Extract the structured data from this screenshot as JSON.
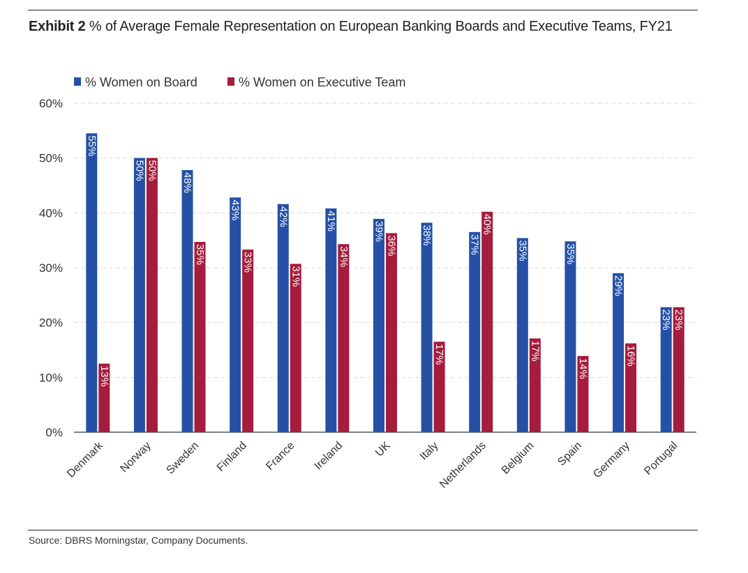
{
  "header": {
    "title_prefix": "Exhibit 2",
    "title_rest": "% of Average Female Representation on European Banking Boards and Executive Teams, FY21"
  },
  "footer": {
    "source": "Source: DBRS Morningstar, Company Documents."
  },
  "chart_data": {
    "type": "bar",
    "legend_position": "top-left",
    "grid": true,
    "ylim": [
      0,
      60
    ],
    "yticks": [
      "0%",
      "10%",
      "20%",
      "30%",
      "40%",
      "50%",
      "60%"
    ],
    "categories": [
      "Denmark",
      "Norway",
      "Sweden",
      "Finland",
      "France",
      "Ireland",
      "UK",
      "Italy",
      "Netherlands",
      "Belgium",
      "Spain",
      "Germany",
      "Portugal"
    ],
    "series": [
      {
        "name": "% Women on Board",
        "color": "#2451a6",
        "values": [
          54.5,
          50,
          47.8,
          42.8,
          41.6,
          40.8,
          38.9,
          38.2,
          36.5,
          35.4,
          34.8,
          29,
          22.8
        ],
        "labels": [
          "55%",
          "50%",
          "48%",
          "43%",
          "42%",
          "41%",
          "39%",
          "38%",
          "37%",
          "35%",
          "35%",
          "29%",
          "23%"
        ]
      },
      {
        "name": "% Women on Executive Team",
        "color": "#a51c3c",
        "values": [
          12.5,
          50,
          34.7,
          33.3,
          30.7,
          34.3,
          36.3,
          16.5,
          40.2,
          17.1,
          13.9,
          16.2,
          22.8
        ],
        "labels": [
          "13%",
          "50%",
          "35%",
          "33%",
          "31%",
          "34%",
          "36%",
          "17%",
          "40%",
          "17%",
          "14%",
          "16%",
          "23%"
        ]
      }
    ]
  }
}
